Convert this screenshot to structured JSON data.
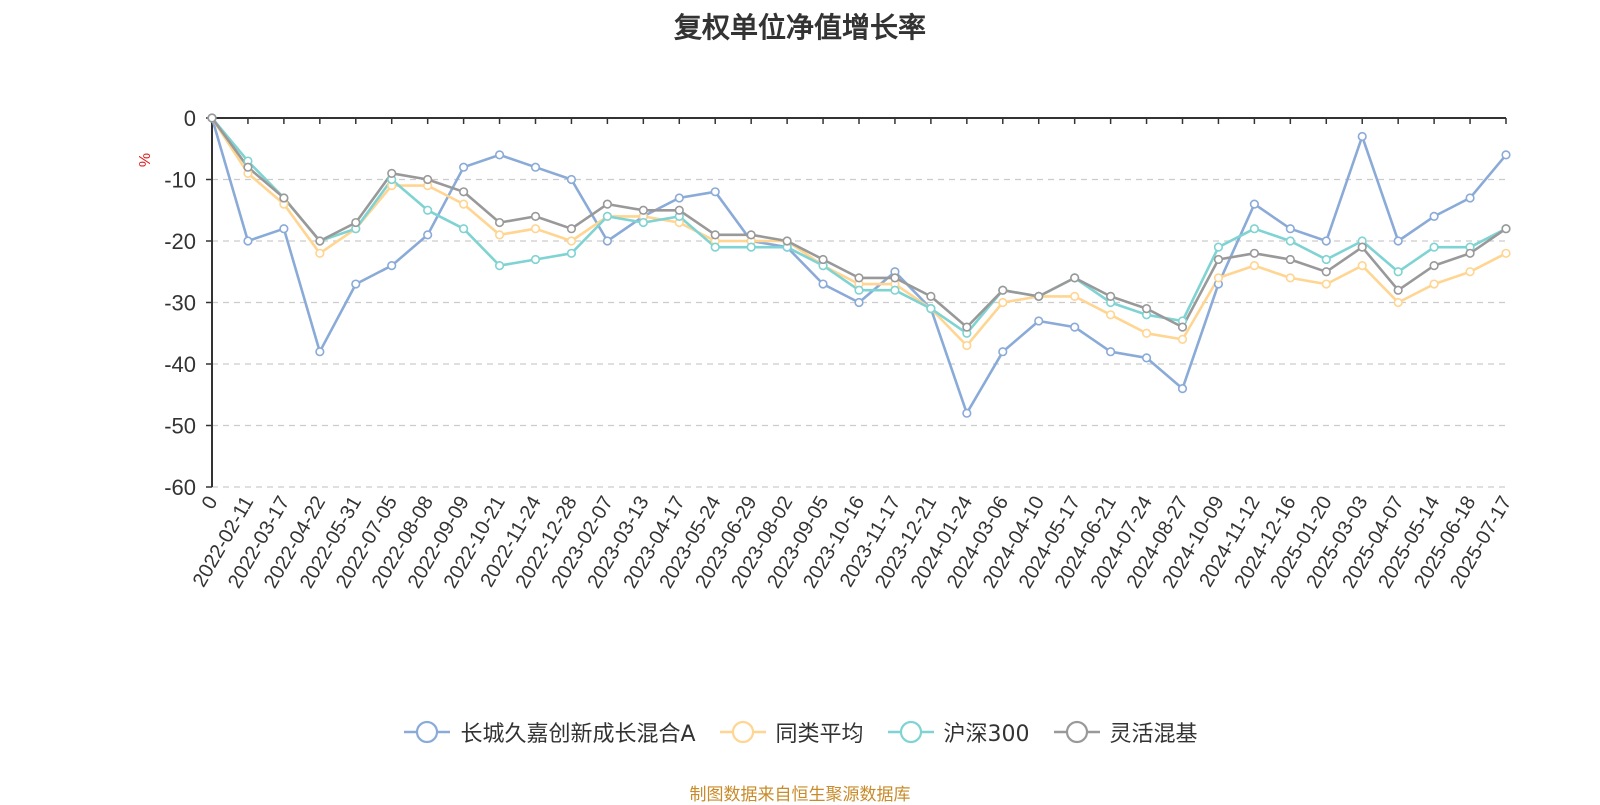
{
  "chart_data": {
    "type": "line",
    "title": "复权单位净值增长率",
    "ylabel": "%",
    "ylim": [
      -60,
      0
    ],
    "yticks": [
      0,
      -10,
      -20,
      -30,
      -40,
      -50,
      -60
    ],
    "grid": true,
    "legend_position": "bottom-center",
    "x_tick_labels": [
      "0",
      "2022-02-11",
      "2022-03-17",
      "2022-04-22",
      "2022-05-31",
      "2022-07-05",
      "2022-08-08",
      "2022-09-09",
      "2022-10-21",
      "2022-11-24",
      "2022-12-28",
      "2023-02-07",
      "2023-03-13",
      "2023-04-17",
      "2023-05-24",
      "2023-06-29",
      "2023-08-02",
      "2023-09-05",
      "2023-10-16",
      "2023-11-17",
      "2023-12-21",
      "2024-01-24",
      "2024-03-06",
      "2024-04-10",
      "2024-05-17",
      "2024-06-21",
      "2024-07-24",
      "2024-08-27",
      "2024-10-09",
      "2024-11-12",
      "2024-12-16",
      "2025-01-20",
      "2025-03-03",
      "2025-04-07",
      "2025-05-14",
      "2025-06-18",
      "2025-07-17"
    ],
    "series": [
      {
        "name": "长城久嘉创新成长混合A",
        "color": "#8aaad8",
        "values": [
          0,
          -20,
          -18,
          -38,
          -27,
          -24,
          -19,
          -8,
          -6,
          -8,
          -10,
          -20,
          -16,
          -13,
          -12,
          -20,
          -21,
          -27,
          -30,
          -25,
          -31,
          -48,
          -38,
          -33,
          -34,
          -38,
          -39,
          -44,
          -27,
          -14,
          -18,
          -20,
          -3,
          -20,
          -16,
          -13,
          -6
        ]
      },
      {
        "name": "同类平均",
        "color": "#ffd591",
        "values": [
          0,
          -9,
          -14,
          -22,
          -18,
          -11,
          -11,
          -14,
          -19,
          -18,
          -20,
          -16,
          -16,
          -17,
          -20,
          -20,
          -20,
          -24,
          -27,
          -27,
          -31,
          -37,
          -30,
          -29,
          -29,
          -32,
          -35,
          -36,
          -26,
          -24,
          -26,
          -27,
          -24,
          -30,
          -27,
          -25,
          -22
        ]
      },
      {
        "name": "沪深300",
        "color": "#7fd3d3",
        "values": [
          0,
          -7,
          -13,
          -20,
          -18,
          -10,
          -15,
          -18,
          -24,
          -23,
          -22,
          -16,
          -17,
          -16,
          -21,
          -21,
          -21,
          -24,
          -28,
          -28,
          -31,
          -35,
          -28,
          -29,
          -26,
          -30,
          -32,
          -33,
          -21,
          -18,
          -20,
          -23,
          -20,
          -25,
          -21,
          -21,
          -18
        ]
      },
      {
        "name": "灵活混基",
        "color": "#999999",
        "values": [
          0,
          -8,
          -13,
          -20,
          -17,
          -9,
          -10,
          -12,
          -17,
          -16,
          -18,
          -14,
          -15,
          -15,
          -19,
          -19,
          -20,
          -23,
          -26,
          -26,
          -29,
          -34,
          -28,
          -29,
          -26,
          -29,
          -31,
          -34,
          -23,
          -22,
          -23,
          -25,
          -21,
          -28,
          -24,
          -22,
          -18
        ]
      }
    ]
  },
  "footer": "制图数据来自恒生聚源数据库"
}
